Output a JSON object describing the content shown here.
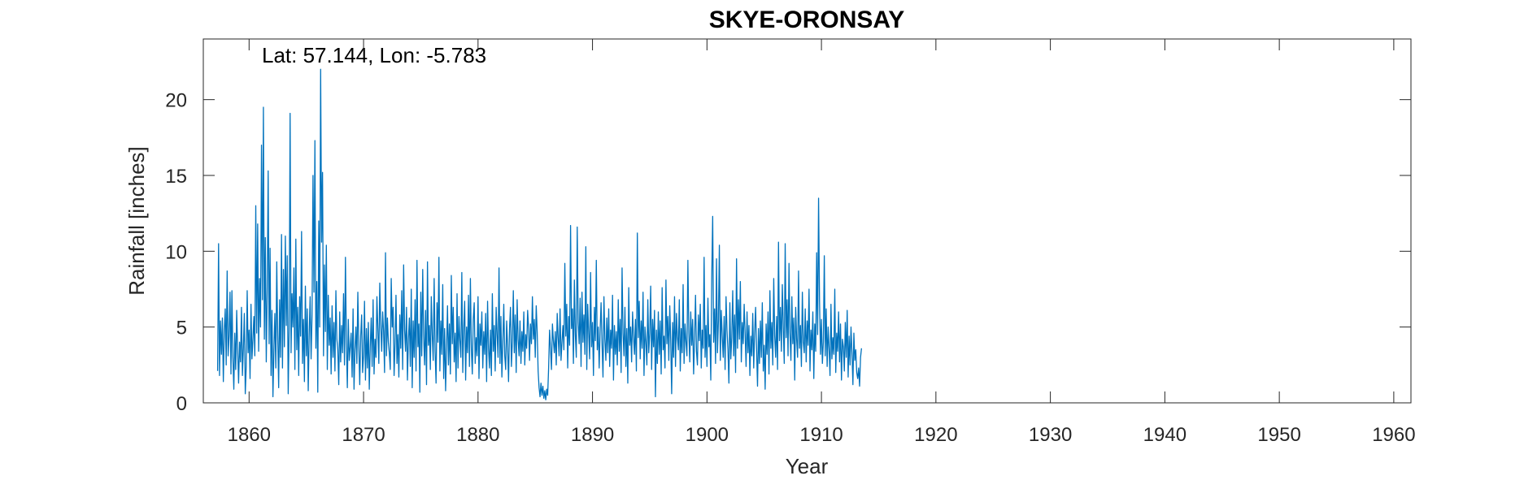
{
  "chart_data": {
    "type": "line",
    "title": "SKYE-ORONSAY",
    "annotation": "Lat: 57.144, Lon: -5.783",
    "xlabel": "Year",
    "ylabel": "Rainfall [inches]",
    "xlim": [
      1856,
      1961.5
    ],
    "ylim": [
      0,
      24
    ],
    "xticks": [
      1860,
      1870,
      1880,
      1890,
      1900,
      1910,
      1920,
      1930,
      1940,
      1950,
      1960
    ],
    "yticks": [
      0,
      5,
      10,
      15,
      20
    ],
    "grid": false,
    "series": [
      {
        "color": "#0072BD",
        "x_start": 1857.25,
        "x_step": 0.083333,
        "values": [
          2.1,
          10.5,
          1.8,
          5.4,
          3.2,
          5.6,
          1.4,
          4.8,
          6.2,
          2.5,
          8.7,
          3.1,
          4.4,
          7.3,
          1.9,
          7.4,
          3.0,
          0.9,
          4.6,
          2.2,
          6.1,
          3.5,
          1.3,
          4.0,
          2.7,
          6.3,
          1.8,
          3.6,
          5.9,
          0.6,
          2.4,
          7.4,
          3.3,
          4.8,
          1.6,
          6.5,
          2.9,
          4.2,
          5.7,
          3.1,
          13.0,
          4.6,
          11.8,
          3.4,
          8.2,
          5.0,
          17.0,
          6.8,
          19.5,
          4.2,
          10.9,
          2.7,
          7.3,
          15.3,
          3.9,
          10.2,
          1.8,
          6.1,
          0.4,
          3.5,
          5.9,
          2.3,
          9.3,
          4.4,
          1.0,
          6.8,
          3.0,
          11.1,
          2.3,
          8.8,
          3.7,
          11.0,
          5.1,
          9.7,
          0.6,
          4.9,
          19.1,
          3.3,
          7.2,
          5.0,
          8.9,
          2.2,
          10.8,
          3.5,
          6.3,
          1.8,
          7.0,
          4.4,
          11.3,
          2.6,
          5.5,
          1.4,
          7.7,
          3.1,
          6.2,
          0.8,
          4.5,
          7.0,
          2.9,
          5.8,
          15.0,
          7.3,
          17.3,
          3.6,
          8.0,
          0.7,
          12.0,
          5.0,
          22.0,
          10.6,
          15.2,
          3.1,
          9.1,
          4.7,
          10.4,
          2.2,
          7.1,
          3.8,
          5.6,
          1.9,
          6.4,
          3.0,
          5.3,
          2.1,
          7.4,
          4.2,
          3.5,
          1.2,
          6.0,
          2.7,
          5.1,
          3.3,
          7.2,
          2.5,
          9.6,
          4.0,
          1.0,
          5.5,
          2.8,
          3.7,
          4.6,
          1.7,
          6.2,
          0.9,
          3.5,
          5.0,
          2.6,
          7.3,
          3.8,
          1.2,
          4.4,
          5.8,
          2.0,
          3.1,
          6.7,
          1.5,
          4.9,
          2.3,
          5.3,
          0.9,
          3.7,
          5.6,
          2.4,
          6.8,
          1.9,
          4.2,
          3.0,
          7.0,
          4.8,
          2.6,
          7.9,
          5.2,
          3.4,
          6.0,
          4.7,
          2.0,
          9.9,
          3.1,
          5.6,
          4.0,
          3.3,
          2.2,
          8.2,
          5.0,
          6.3,
          1.8,
          3.9,
          7.1,
          2.6,
          4.5,
          1.7,
          5.8,
          3.6,
          7.4,
          2.2,
          9.1,
          4.8,
          3.4,
          6.3,
          1.5,
          4.2,
          5.6,
          2.4,
          7.5,
          1.0,
          5.4,
          3.0,
          6.8,
          2.1,
          9.4,
          3.7,
          5.2,
          0.7,
          7.3,
          3.1,
          8.8,
          4.4,
          2.5,
          6.1,
          1.2,
          9.3,
          3.8,
          5.1,
          2.2,
          7.0,
          4.5,
          2.8,
          8.2,
          3.4,
          1.3,
          6.6,
          4.0,
          9.6,
          2.1,
          5.4,
          3.2,
          7.8,
          1.6,
          4.9,
          0.8,
          3.6,
          6.4,
          2.5,
          5.2,
          1.9,
          8.4,
          3.9,
          6.3,
          2.7,
          4.6,
          1.4,
          7.2,
          2.3,
          5.7,
          4.1,
          3.0,
          8.6,
          2.0,
          4.9,
          6.7,
          1.5,
          5.0,
          3.3,
          7.1,
          2.4,
          8.2,
          3.6,
          1.9,
          5.5,
          6.6,
          2.6,
          4.3,
          3.1,
          7.0,
          1.6,
          5.2,
          3.8,
          6.0,
          2.3,
          4.7,
          3.2,
          5.9,
          1.4,
          6.7,
          3.6,
          2.3,
          4.8,
          1.8,
          7.2,
          3.4,
          5.1,
          2.1,
          6.3,
          4.5,
          3.0,
          8.9,
          2.6,
          5.7,
          1.7,
          4.0,
          6.5,
          3.1,
          2.2,
          5.4,
          3.7,
          1.4,
          4.9,
          6.3,
          2.4,
          4.1,
          7.4,
          3.3,
          5.8,
          2.0,
          6.8,
          4.2,
          3.1,
          5.4,
          2.6,
          4.7,
          3.4,
          6.0,
          2.5,
          4.5,
          3.6,
          6.1,
          4.9,
          2.8,
          5.2,
          3.9,
          7.0,
          4.2,
          5.5,
          3.0,
          6.4,
          4.7,
          2.1,
          1.0,
          0.4,
          1.3,
          0.5,
          1.1,
          0.3,
          0.8,
          0.2,
          0.9,
          0.5,
          2.3,
          4.8,
          3.6,
          2.2,
          5.2,
          4.1,
          3.3,
          4.7,
          2.5,
          5.9,
          4.3,
          3.1,
          6.2,
          2.8,
          4.0,
          5.1,
          3.5,
          9.2,
          4.4,
          6.5,
          2.3,
          5.7,
          3.8,
          11.7,
          4.9,
          6.2,
          2.6,
          8.1,
          4.5,
          3.0,
          11.6,
          5.3,
          3.9,
          6.9,
          2.4,
          7.3,
          4.0,
          5.8,
          3.2,
          10.3,
          2.2,
          6.5,
          4.6,
          2.9,
          8.6,
          3.7,
          5.3,
          1.8,
          6.3,
          4.1,
          9.4,
          3.5,
          5.0,
          2.3,
          4.8,
          6.6,
          3.9,
          1.7,
          7.0,
          4.2,
          2.8,
          5.6,
          3.3,
          6.2,
          2.4,
          4.8,
          3.6,
          7.1,
          1.5,
          5.1,
          3.2,
          4.7,
          2.5,
          6.8,
          3.4,
          5.5,
          2.0,
          8.9,
          4.6,
          3.1,
          6.3,
          2.4,
          4.9,
          1.3,
          7.6,
          3.8,
          5.0,
          2.7,
          6.0,
          4.4,
          3.2,
          5.5,
          2.1,
          11.2,
          4.3,
          6.7,
          2.9,
          5.4,
          3.6,
          7.3,
          1.8,
          5.0,
          4.0,
          2.5,
          6.8,
          3.3,
          4.6,
          7.7,
          2.2,
          5.5,
          3.7,
          6.1,
          0.4,
          4.8,
          2.6,
          6.0,
          3.2,
          5.4,
          1.9,
          7.6,
          3.5,
          4.4,
          2.3,
          8.1,
          3.9,
          5.7,
          2.8,
          6.4,
          4.1,
          0.6,
          5.3,
          3.0,
          7.0,
          2.4,
          5.9,
          4.3,
          3.5,
          6.8,
          2.1,
          4.9,
          3.3,
          7.8,
          2.6,
          5.2,
          4.0,
          3.1,
          9.4,
          4.6,
          2.7,
          6.0,
          3.8,
          5.5,
          1.9,
          4.2,
          7.1,
          3.4,
          2.5,
          5.8,
          4.1,
          6.5,
          2.3,
          4.8,
          3.6,
          9.6,
          3.0,
          5.1,
          2.4,
          6.9,
          3.7,
          4.5,
          1.5,
          8.3,
          12.3,
          4.0,
          6.2,
          2.6,
          9.5,
          3.3,
          5.4,
          10.4,
          2.8,
          6.1,
          4.4,
          3.0,
          5.7,
          2.2,
          7.0,
          4.8,
          3.5,
          1.3,
          6.6,
          2.9,
          4.3,
          7.4,
          3.1,
          5.8,
          2.0,
          9.5,
          3.6,
          6.8,
          4.2,
          8.0,
          2.7,
          5.3,
          3.9,
          6.5,
          4.6,
          2.4,
          6.0,
          3.3,
          5.1,
          1.8,
          4.4,
          3.1,
          5.9,
          2.3,
          4.7,
          6.3,
          3.5,
          1.1,
          4.9,
          2.6,
          5.4,
          3.0,
          6.6,
          2.1,
          3.8,
          0.9,
          5.2,
          3.2,
          6.0,
          1.9,
          7.4,
          3.6,
          5.3,
          2.5,
          8.2,
          4.4,
          3.0,
          5.7,
          2.2,
          10.6,
          4.1,
          6.3,
          3.4,
          7.8,
          5.0,
          2.6,
          10.5,
          4.3,
          6.8,
          3.1,
          9.2,
          4.6,
          2.8,
          7.0,
          3.9,
          5.6,
          1.5,
          6.3,
          4.2,
          3.0,
          8.7,
          3.6,
          5.1,
          2.4,
          7.3,
          4.0,
          3.3,
          6.2,
          2.7,
          5.4,
          3.8,
          7.5,
          2.1,
          4.8,
          3.5,
          6.0,
          1.6,
          5.2,
          3.4,
          9.9,
          4.5,
          13.5,
          6.7,
          3.2,
          5.5,
          2.6,
          4.0,
          9.7,
          3.1,
          6.2,
          2.4,
          5.0,
          3.6,
          1.8,
          6.5,
          2.9,
          4.3,
          3.2,
          7.5,
          2.0,
          4.6,
          3.4,
          6.0,
          2.7,
          5.2,
          1.5,
          4.2,
          3.7,
          2.1,
          5.3,
          3.0,
          6.1,
          1.7,
          4.4,
          2.5,
          5.0,
          3.3,
          1.2,
          4.6,
          2.8,
          3.5,
          2.0,
          1.6,
          2.3,
          1.1,
          3.0,
          3.6
        ]
      }
    ]
  }
}
